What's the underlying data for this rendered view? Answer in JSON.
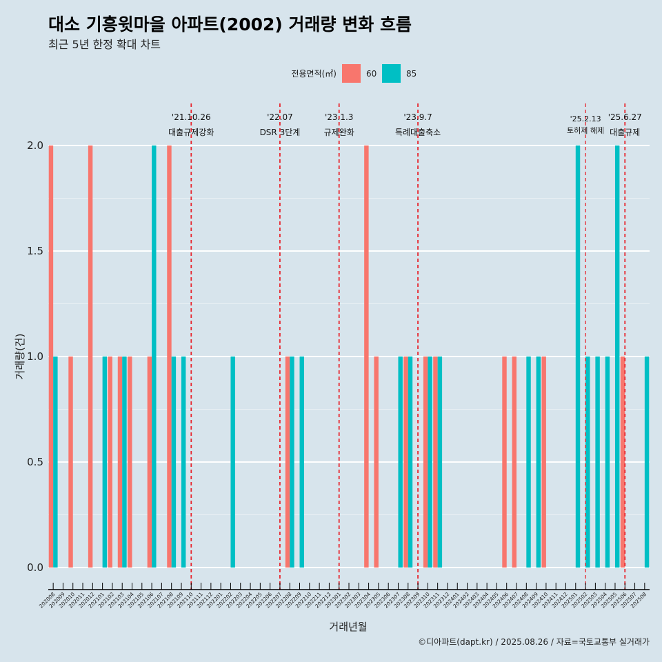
{
  "chart_data": {
    "type": "bar",
    "title": "대소 기흥윗마을 아파트(2002) 거래량 변화 흐름",
    "subtitle": "최근 5년 한정 확대 차트",
    "xlabel": "거래년월",
    "ylabel": "거래량(건)",
    "ylim": [
      0,
      2
    ],
    "yticks": [
      "0.0",
      "0.5",
      "1.0",
      "1.5",
      "2.0"
    ],
    "grid": true,
    "legend": {
      "title": "전용면적(㎡)",
      "position": "top"
    },
    "categories": [
      "202008",
      "202009",
      "202010",
      "202011",
      "202012",
      "202101",
      "202102",
      "202103",
      "202104",
      "202105",
      "202106",
      "202107",
      "202108",
      "202109",
      "202110",
      "202111",
      "202112",
      "202201",
      "202202",
      "202203",
      "202204",
      "202205",
      "202206",
      "202207",
      "202208",
      "202209",
      "202210",
      "202211",
      "202212",
      "202301",
      "202302",
      "202303",
      "202304",
      "202305",
      "202306",
      "202307",
      "202308",
      "202309",
      "202310",
      "202311",
      "202312",
      "202401",
      "202402",
      "202403",
      "202404",
      "202405",
      "202406",
      "202407",
      "202408",
      "202409",
      "202410",
      "202411",
      "202412",
      "202501",
      "202502",
      "202503",
      "202504",
      "202505",
      "202506",
      "202507",
      "202508"
    ],
    "series": [
      {
        "name": "60",
        "color": "#f8766d",
        "values": [
          2,
          0,
          1,
          0,
          2,
          0,
          1,
          1,
          1,
          0,
          1,
          0,
          2,
          0,
          0,
          0,
          0,
          0,
          0,
          0,
          0,
          0,
          0,
          0,
          1,
          0,
          0,
          0,
          0,
          0,
          0,
          0,
          2,
          1,
          0,
          0,
          1,
          0,
          1,
          1,
          0,
          0,
          0,
          0,
          0,
          0,
          1,
          1,
          0,
          0,
          1,
          0,
          0,
          0,
          0,
          0,
          0,
          0,
          1,
          0,
          0
        ]
      },
      {
        "name": "85",
        "color": "#00bfc4",
        "values": [
          1,
          0,
          0,
          0,
          0,
          1,
          0,
          1,
          0,
          0,
          2,
          0,
          1,
          1,
          0,
          0,
          0,
          0,
          1,
          0,
          0,
          0,
          0,
          0,
          1,
          1,
          0,
          0,
          0,
          0,
          0,
          0,
          0,
          0,
          0,
          1,
          1,
          0,
          1,
          1,
          0,
          0,
          0,
          0,
          0,
          0,
          0,
          0,
          1,
          1,
          0,
          0,
          0,
          2,
          1,
          1,
          1,
          2,
          0,
          0,
          1
        ]
      }
    ],
    "annotations": [
      {
        "date": "'21.10.26",
        "label": "대출규제강화",
        "at": "202110"
      },
      {
        "date": "'22.07",
        "label": "DSR 3단계",
        "at": "202207"
      },
      {
        "date": "'23.1.3",
        "label": "규제완화",
        "at": "202301"
      },
      {
        "date": "'23.9.7",
        "label": "특례대출축소",
        "at": "202309"
      },
      {
        "date": "'25.2.13",
        "label": "토허제 해제",
        "at": "202502"
      },
      {
        "date": "'25.6.27",
        "label": "대출규제",
        "at": "202506"
      }
    ],
    "caption": "©디아파트(dapt.kr) / 2025.08.26 / 자료=국토교통부 실거래가"
  }
}
